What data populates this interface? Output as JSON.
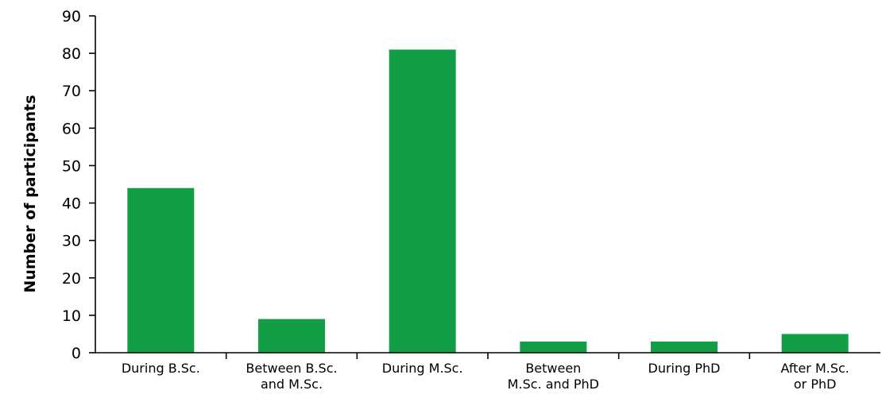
{
  "chart_data": {
    "type": "bar",
    "title": "",
    "xlabel": "",
    "ylabel": "Number of participants",
    "ylim": [
      0,
      90
    ],
    "yticks": [
      0,
      10,
      20,
      30,
      40,
      50,
      60,
      70,
      80,
      90
    ],
    "categories": [
      [
        "During B.Sc."
      ],
      [
        "Between B.Sc.",
        "and M.Sc."
      ],
      [
        "During M.Sc."
      ],
      [
        "Between",
        "M.Sc. and PhD"
      ],
      [
        "During PhD"
      ],
      [
        "After M.Sc.",
        "or PhD"
      ]
    ],
    "values": [
      44,
      9,
      81,
      3,
      3,
      5
    ],
    "bar_color": "#119e45",
    "grid": false,
    "legend": "none"
  }
}
